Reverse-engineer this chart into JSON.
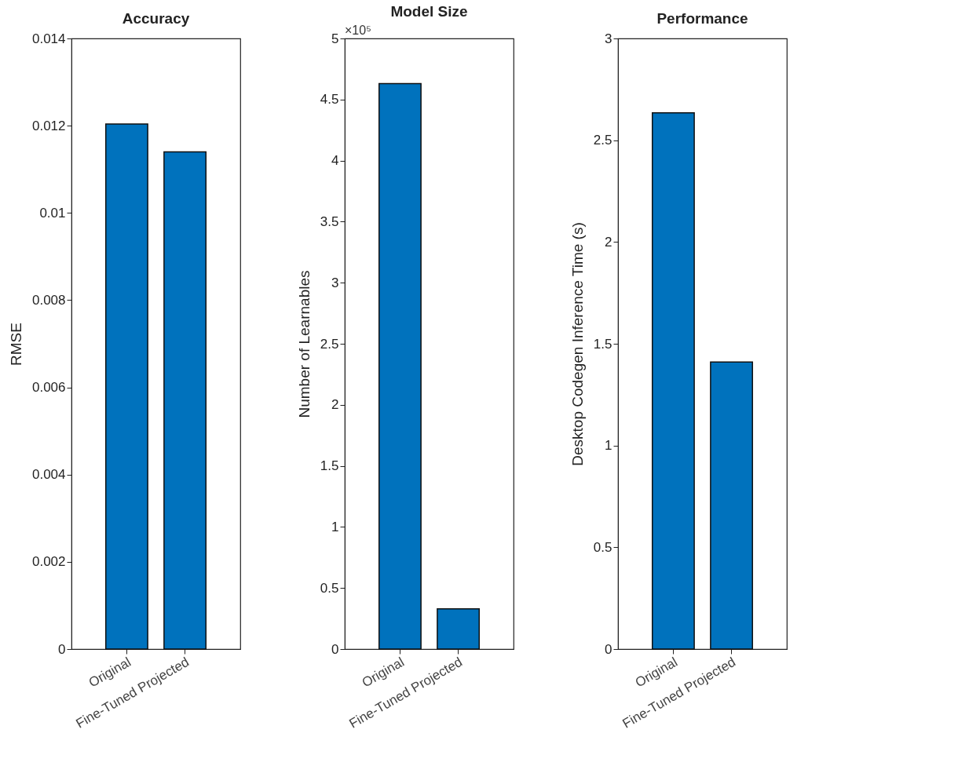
{
  "chart_data": [
    {
      "type": "bar",
      "title": "Accuracy",
      "ylabel": "RMSE",
      "categories": [
        "Original",
        "Fine-Tuned Projected"
      ],
      "values": [
        0.01204,
        0.0114
      ],
      "color": "#0072bd",
      "ylim": [
        0,
        0.014
      ],
      "yticks": [
        0,
        0.002,
        0.004,
        0.006,
        0.008,
        0.01,
        0.012,
        0.014
      ],
      "grid": false
    },
    {
      "type": "bar",
      "title": "Model Size",
      "ylabel": "Number of Learnables",
      "annotations": [
        "×10⁵"
      ],
      "categories": [
        "Original",
        "Fine-Tuned Projected"
      ],
      "values": [
        4.63,
        0.33
      ],
      "color": "#0072bd",
      "ylim": [
        0,
        5
      ],
      "yticks": [
        0,
        0.5,
        1,
        1.5,
        2,
        2.5,
        3,
        3.5,
        4,
        4.5,
        5
      ],
      "grid": false
    },
    {
      "type": "bar",
      "title": "Performance",
      "ylabel": "Desktop Codegen Inference Time (s)",
      "categories": [
        "Original",
        "Fine-Tuned Projected"
      ],
      "values": [
        2.635,
        1.41
      ],
      "color": "#0072bd",
      "ylim": [
        0,
        3
      ],
      "yticks": [
        0,
        0.5,
        1,
        1.5,
        2,
        2.5,
        3
      ],
      "grid": false
    }
  ]
}
